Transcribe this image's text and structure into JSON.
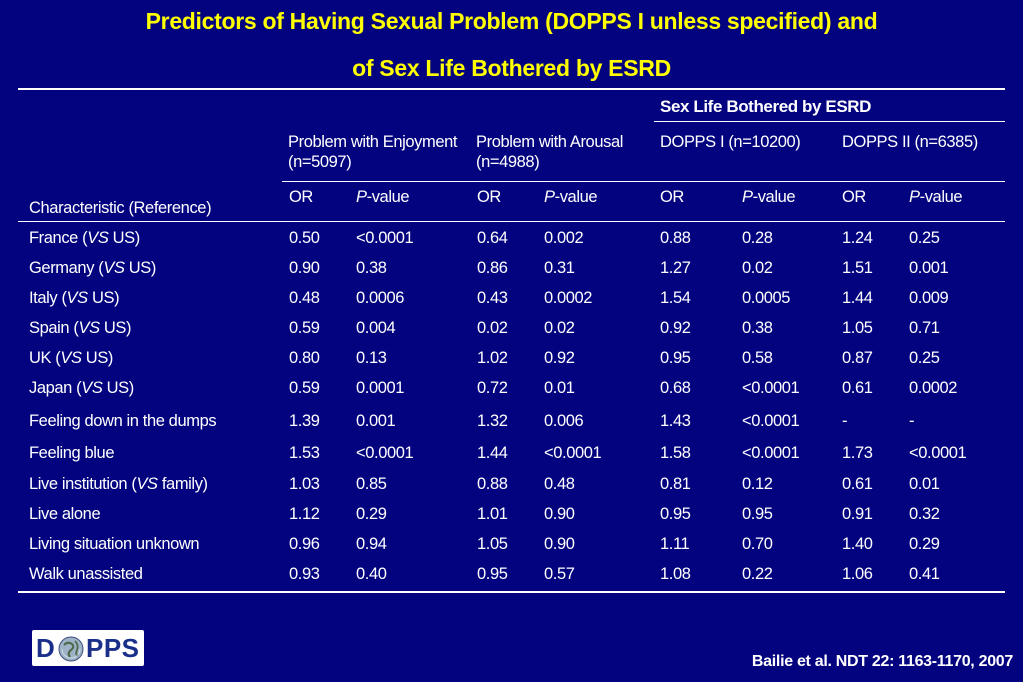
{
  "title": {
    "line1": "Predictors of Having Sexual Problem (DOPPS I unless specified) and",
    "line2": "of Sex Life Bothered by ESRD"
  },
  "table": {
    "group_header": "Sex Life Bothered by ESRD",
    "col_groups": [
      "Problem with Enjoyment (n=5097)",
      "Problem with Arousal (n=4988)",
      "DOPPS I (n=10200)",
      "DOPPS II (n=6385)"
    ],
    "characteristic_header": "Characteristic (Reference)",
    "or_label": "OR",
    "p_label_italic": "P",
    "p_label_rest": "-value",
    "rows": [
      {
        "pre": "France (",
        "it": "VS",
        "post": " US)",
        "v": [
          "0.50",
          "<0.0001",
          "0.64",
          "0.002",
          "0.88",
          "0.28",
          "1.24",
          "0.25"
        ]
      },
      {
        "pre": "Germany (",
        "it": "VS",
        "post": " US)",
        "v": [
          "0.90",
          "0.38",
          "0.86",
          "0.31",
          "1.27",
          "0.02",
          "1.51",
          "0.001"
        ]
      },
      {
        "pre": "Italy (",
        "it": "VS",
        "post": " US)",
        "v": [
          "0.48",
          "0.0006",
          "0.43",
          "0.0002",
          "1.54",
          "0.0005",
          "1.44",
          "0.009"
        ]
      },
      {
        "pre": "Spain (",
        "it": "VS",
        "post": " US)",
        "v": [
          "0.59",
          "0.004",
          "0.02",
          "0.02",
          "0.92",
          "0.38",
          "1.05",
          "0.71"
        ]
      },
      {
        "pre": "UK (",
        "it": "VS",
        "post": " US)",
        "v": [
          "0.80",
          "0.13",
          "1.02",
          "0.92",
          "0.95",
          "0.58",
          "0.87",
          "0.25"
        ]
      },
      {
        "pre": "Japan (",
        "it": "VS",
        "post": " US)",
        "v": [
          "0.59",
          "0.0001",
          "0.72",
          "0.01",
          "0.68",
          "<0.0001",
          "0.61",
          "0.0002"
        ]
      },
      {
        "pre": "Feeling down in the dumps",
        "it": "",
        "post": "",
        "v": [
          "1.39",
          "0.001",
          "1.32",
          "0.006",
          "1.43",
          "<0.0001",
          "-",
          "-"
        ]
      },
      {
        "pre": "Feeling blue",
        "it": "",
        "post": "",
        "v": [
          "1.53",
          "<0.0001",
          "1.44",
          "<0.0001",
          "1.58",
          "<0.0001",
          "1.73",
          "<0.0001"
        ]
      },
      {
        "pre": "Live institution (",
        "it": "VS",
        "post": " family)",
        "v": [
          "1.03",
          "0.85",
          "0.88",
          "0.48",
          "0.81",
          "0.12",
          "0.61",
          "0.01"
        ]
      },
      {
        "pre": "Live alone",
        "it": "",
        "post": "",
        "v": [
          "1.12",
          "0.29",
          "1.01",
          "0.90",
          "0.95",
          "0.95",
          "0.91",
          "0.32"
        ]
      },
      {
        "pre": "Living situation unknown",
        "it": "",
        "post": "",
        "v": [
          "0.96",
          "0.94",
          "1.05",
          "0.90",
          "1.11",
          "0.70",
          "1.40",
          "0.29"
        ]
      },
      {
        "pre": "Walk unassisted",
        "it": "",
        "post": "",
        "v": [
          "0.93",
          "0.40",
          "0.95",
          "0.57",
          "1.08",
          "0.22",
          "1.06",
          "0.41"
        ]
      }
    ]
  },
  "logo": {
    "text_left": "D",
    "text_right": "PPS",
    "icon": "globe-icon"
  },
  "citation": "Bailie et al. NDT 22: 1163-1170, 2007",
  "colors": {
    "background": "#03037f",
    "title": "#ffff00",
    "text": "#ffffff",
    "logo_text": "#1a2f8a"
  }
}
